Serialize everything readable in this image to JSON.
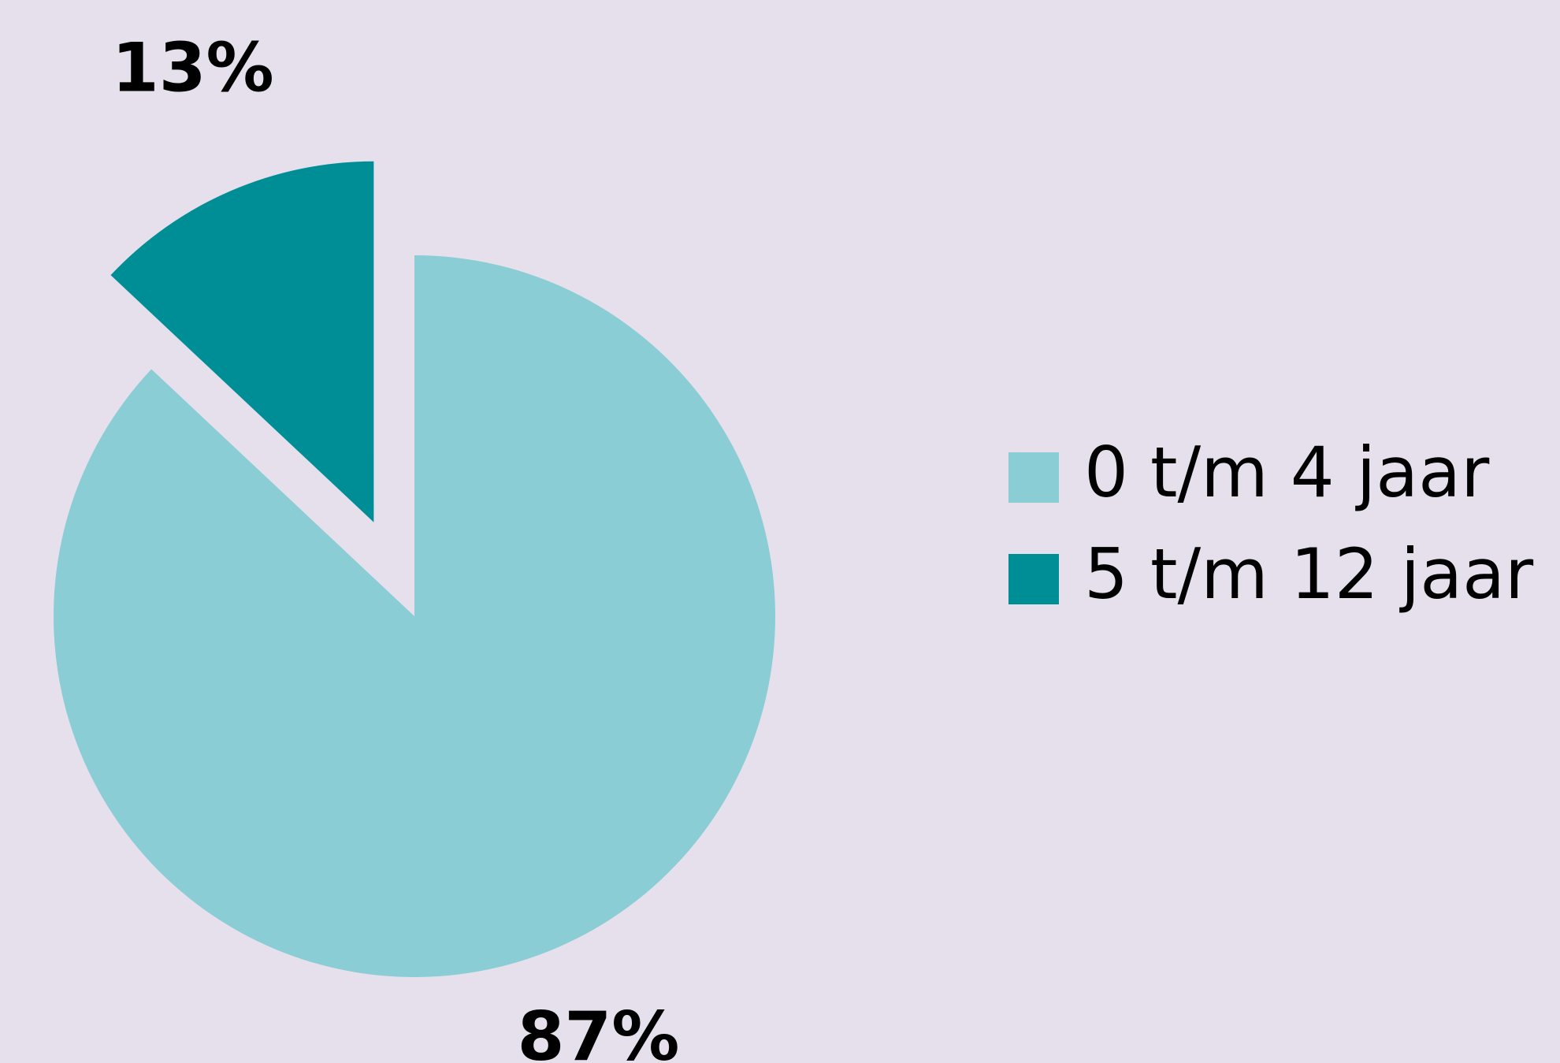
{
  "colors": {
    "background": "#e6e0ec",
    "label_text": "#000000"
  },
  "chart_data": {
    "type": "pie",
    "start_angle_deg": 0,
    "direction": "clockwise",
    "exploded": "5 t/m 12 jaar",
    "slices": [
      {
        "label": "0 t/m 4 jaar",
        "value": 87,
        "display": "87%",
        "color": "#8acdd5"
      },
      {
        "label": "5 t/m 12 jaar",
        "value": 13,
        "display": "13%",
        "color": "#008e96"
      }
    ],
    "legend": {
      "position": "right",
      "entries": [
        "0 t/m 4 jaar",
        "5 t/m 12 jaar"
      ]
    }
  }
}
